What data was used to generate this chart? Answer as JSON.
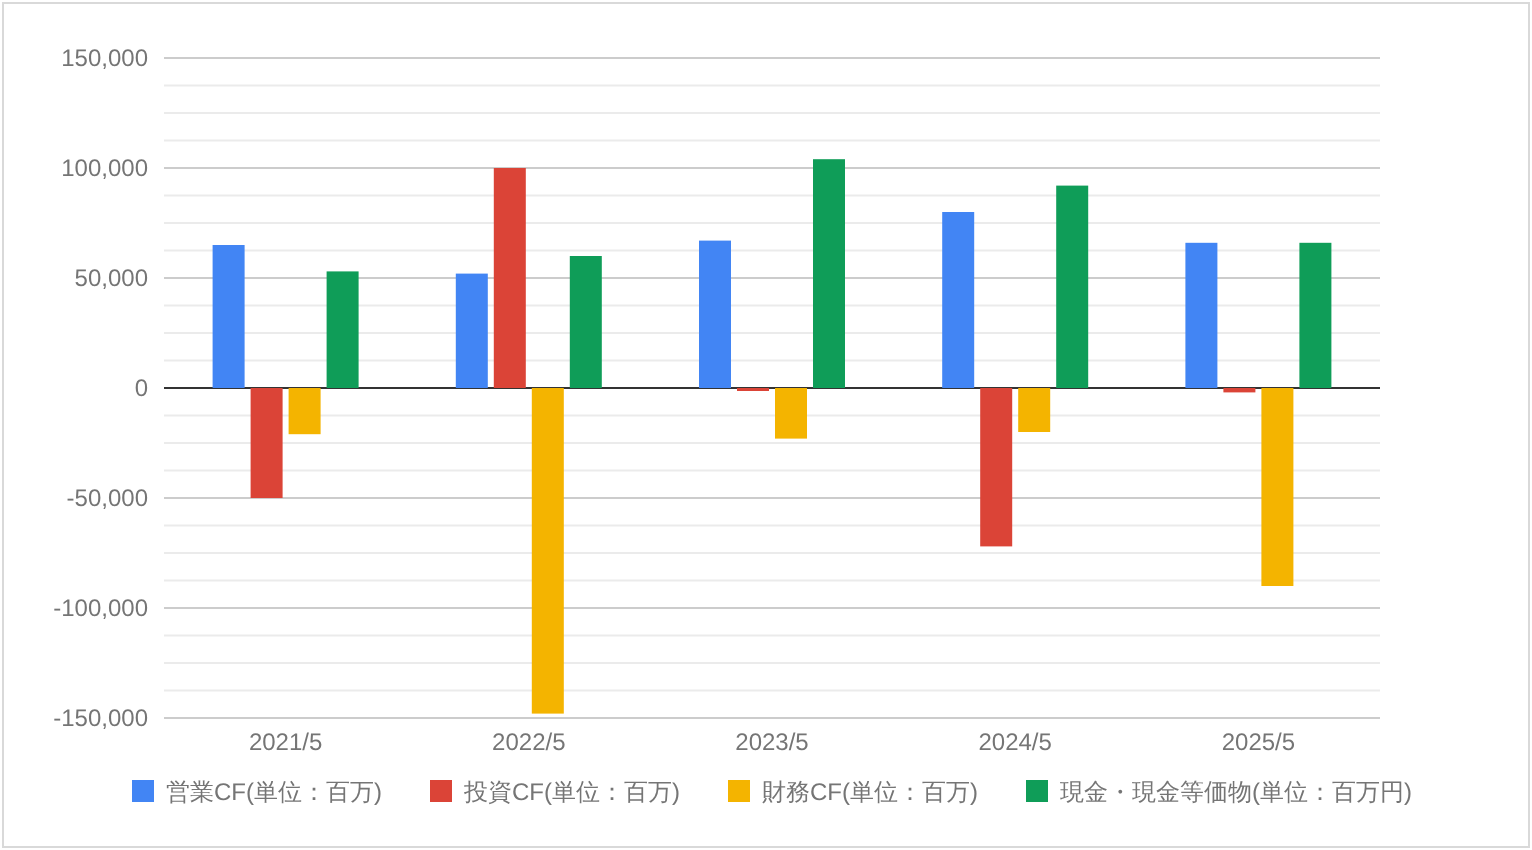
{
  "chart_data": {
    "type": "bar",
    "categories": [
      "2021/5",
      "2022/5",
      "2023/5",
      "2024/5",
      "2025/5"
    ],
    "series": [
      {
        "name": "営業CF(単位：百万)",
        "color": "#4285f4",
        "values": [
          65000,
          52000,
          67000,
          80000,
          66000
        ]
      },
      {
        "name": "投資CF(単位：百万)",
        "color": "#db4437",
        "values": [
          -50000,
          100000,
          -1000,
          -72000,
          -2000
        ]
      },
      {
        "name": "財務CF(単位：百万)",
        "color": "#f4b400",
        "values": [
          -21000,
          -148000,
          -23000,
          -20000,
          -90000
        ]
      },
      {
        "name": "現金・現金等価物(単位：百万円)",
        "color": "#0f9d58",
        "values": [
          53000,
          60000,
          104000,
          92000,
          66000
        ]
      }
    ],
    "ylim": [
      -150000,
      150000
    ],
    "yticks": [
      {
        "value": -150000,
        "label": "-150,000"
      },
      {
        "value": -137500,
        "label": null
      },
      {
        "value": -125000,
        "label": null
      },
      {
        "value": -112500,
        "label": null
      },
      {
        "value": -100000,
        "label": "-100,000"
      },
      {
        "value": -87500,
        "label": null
      },
      {
        "value": -75000,
        "label": null
      },
      {
        "value": -62500,
        "label": null
      },
      {
        "value": -50000,
        "label": "-50,000"
      },
      {
        "value": -37500,
        "label": null
      },
      {
        "value": -25000,
        "label": null
      },
      {
        "value": -12500,
        "label": null
      },
      {
        "value": 0,
        "label": "0"
      },
      {
        "value": 12500,
        "label": null
      },
      {
        "value": 25000,
        "label": null
      },
      {
        "value": 37500,
        "label": null
      },
      {
        "value": 50000,
        "label": "50,000"
      },
      {
        "value": 62500,
        "label": null
      },
      {
        "value": 75000,
        "label": null
      },
      {
        "value": 87500,
        "label": null
      },
      {
        "value": 100000,
        "label": "100,000"
      },
      {
        "value": 112500,
        "label": null
      },
      {
        "value": 125000,
        "label": null
      },
      {
        "value": 137500,
        "label": null
      },
      {
        "value": 150000,
        "label": "150,000"
      }
    ],
    "grid": "y",
    "legend": "bottom"
  }
}
